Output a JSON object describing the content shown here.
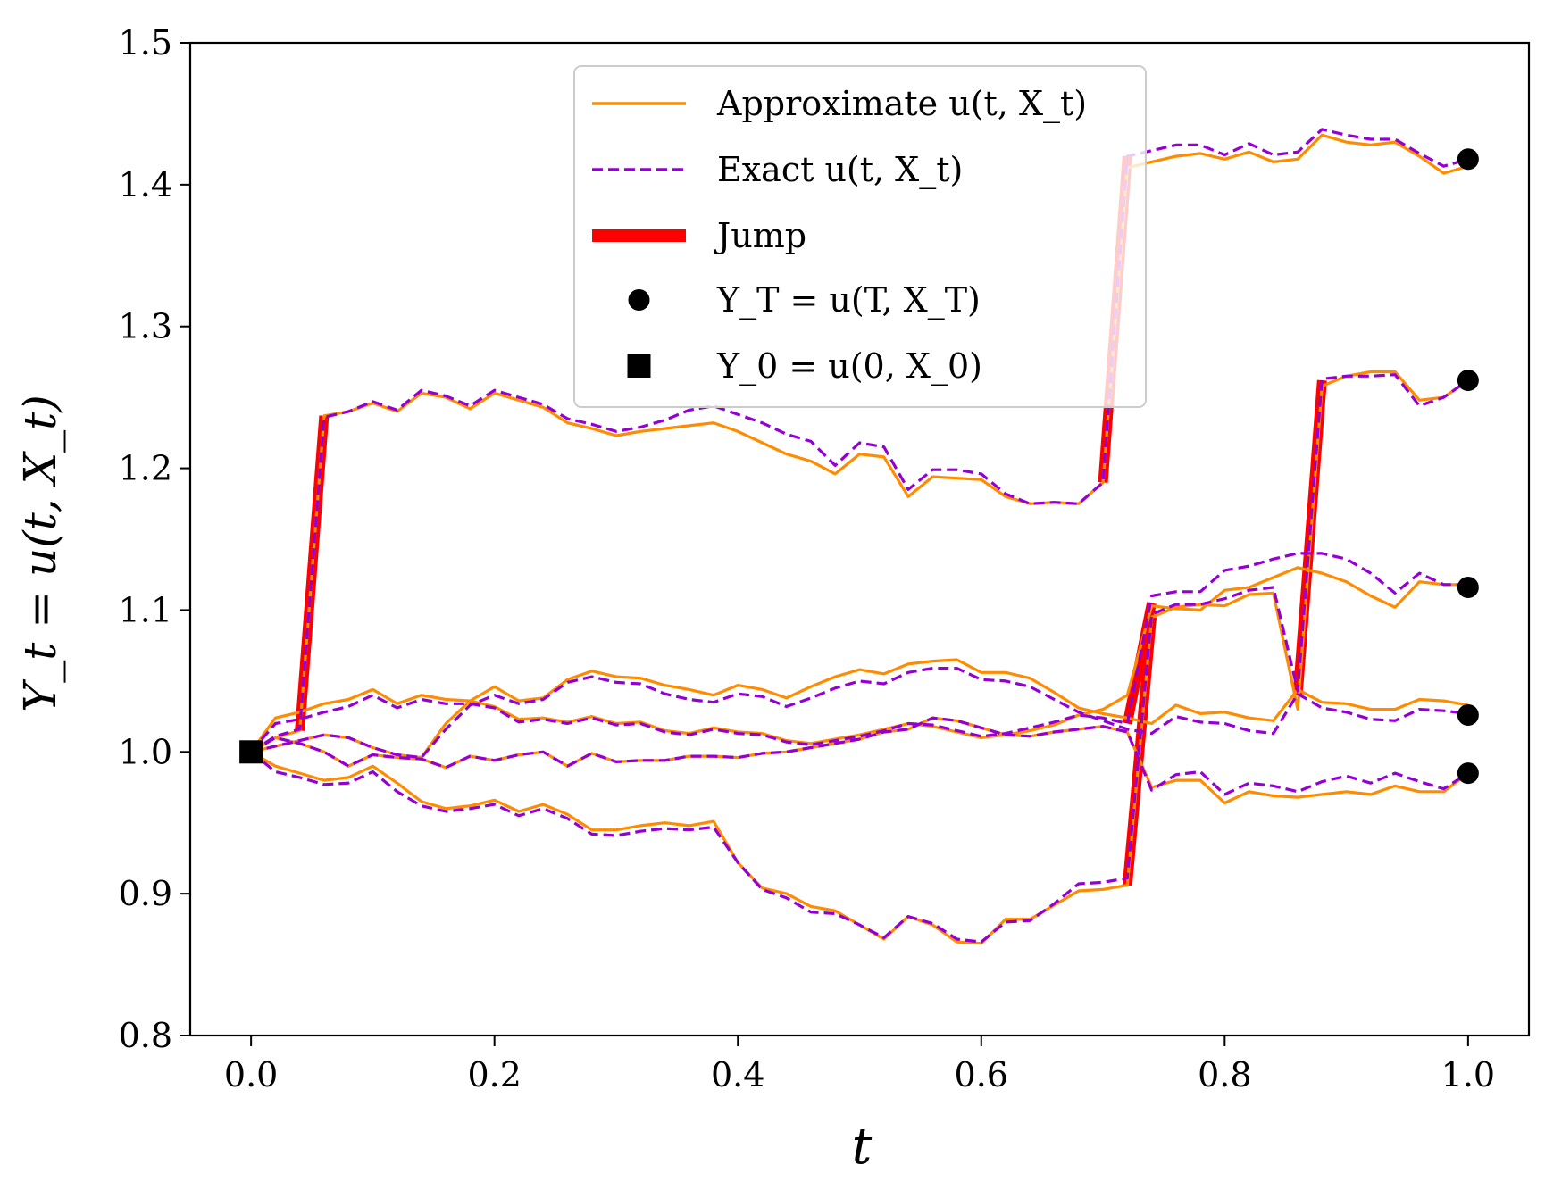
{
  "chart_data": {
    "type": "line",
    "xlabel": "t",
    "ylabel": "Y_t = u(t, X_t)",
    "xlim": [
      -0.05,
      1.05
    ],
    "ylim": [
      0.8,
      1.5
    ],
    "xticks": [
      0.0,
      0.2,
      0.4,
      0.6,
      0.8,
      1.0
    ],
    "xtick_labels": [
      "0.0",
      "0.2",
      "0.4",
      "0.6",
      "0.8",
      "1.0"
    ],
    "yticks": [
      0.8,
      0.9,
      1.0,
      1.1,
      1.2,
      1.3,
      1.4,
      1.5
    ],
    "ytick_labels": [
      "0.8",
      "0.9",
      "1.0",
      "1.1",
      "1.2",
      "1.3",
      "1.4",
      "1.5"
    ],
    "legend": {
      "placement": "top-center",
      "entries": [
        {
          "key": "approx",
          "label": "Approximate u(t, X_t)"
        },
        {
          "key": "exact",
          "label": "Exact u(t, X_t)"
        },
        {
          "key": "jump",
          "label": "Jump"
        },
        {
          "key": "terminal",
          "label": "Y_T = u(T, X_T)"
        },
        {
          "key": "initial",
          "label": "Y_0 = u(0, X_0)"
        }
      ]
    },
    "colors": {
      "approx": "#ff8c00",
      "exact": "#9400d3",
      "jump": "#ff0000",
      "marker": "#000000"
    },
    "initial_point": {
      "t": 0.0,
      "y": 1.0
    },
    "series": [
      {
        "name": "path-1",
        "x": [
          0.0,
          0.02,
          0.04,
          0.06,
          0.08,
          0.1,
          0.12,
          0.14,
          0.16,
          0.18,
          0.2,
          0.22,
          0.24,
          0.26,
          0.28,
          0.3,
          0.32,
          0.34,
          0.36,
          0.38,
          0.4,
          0.42,
          0.44,
          0.46,
          0.48,
          0.5,
          0.52,
          0.54,
          0.56,
          0.58,
          0.6,
          0.62,
          0.64,
          0.66,
          0.68,
          0.7,
          0.72,
          0.74,
          0.76,
          0.78,
          0.8,
          0.82,
          0.84,
          0.86,
          0.88,
          0.9,
          0.92,
          0.94,
          0.96,
          0.98,
          1.0
        ],
        "approx": [
          1.0,
          1.01,
          1.015,
          1.237,
          1.24,
          1.246,
          1.24,
          1.253,
          1.25,
          1.242,
          1.253,
          1.248,
          1.243,
          1.232,
          1.228,
          1.223,
          1.226,
          1.228,
          1.23,
          1.232,
          1.226,
          1.218,
          1.21,
          1.205,
          1.196,
          1.21,
          1.208,
          1.18,
          1.194,
          1.193,
          1.192,
          1.18,
          1.175,
          1.176,
          1.175,
          1.19,
          1.412,
          1.416,
          1.42,
          1.422,
          1.418,
          1.423,
          1.416,
          1.418,
          1.435,
          1.43,
          1.428,
          1.43,
          1.42,
          1.408,
          1.413
        ],
        "exact": [
          1.0,
          1.011,
          1.016,
          1.236,
          1.24,
          1.247,
          1.241,
          1.255,
          1.251,
          1.244,
          1.255,
          1.25,
          1.245,
          1.235,
          1.231,
          1.226,
          1.229,
          1.234,
          1.241,
          1.244,
          1.238,
          1.232,
          1.224,
          1.219,
          1.202,
          1.218,
          1.215,
          1.185,
          1.199,
          1.199,
          1.196,
          1.182,
          1.175,
          1.176,
          1.175,
          1.19,
          1.42,
          1.424,
          1.428,
          1.428,
          1.421,
          1.429,
          1.421,
          1.423,
          1.439,
          1.435,
          1.432,
          1.432,
          1.422,
          1.413,
          1.418
        ],
        "jumps": [
          [
            0.04,
            1.015,
            0.06,
            1.237
          ],
          [
            0.7,
            1.19,
            0.72,
            1.42
          ]
        ],
        "terminal": 1.418
      },
      {
        "name": "path-2",
        "x": [
          0.0,
          0.02,
          0.04,
          0.06,
          0.08,
          0.1,
          0.12,
          0.14,
          0.16,
          0.18,
          0.2,
          0.22,
          0.24,
          0.26,
          0.28,
          0.3,
          0.32,
          0.34,
          0.36,
          0.38,
          0.4,
          0.42,
          0.44,
          0.46,
          0.48,
          0.5,
          0.52,
          0.54,
          0.56,
          0.58,
          0.6,
          0.62,
          0.64,
          0.66,
          0.68,
          0.7,
          0.72,
          0.74,
          0.76,
          0.78,
          0.8,
          0.82,
          0.84,
          0.86,
          0.88,
          0.9,
          0.92,
          0.94,
          0.96,
          0.98,
          1.0
        ],
        "approx": [
          1.0,
          1.024,
          1.028,
          1.034,
          1.037,
          1.044,
          1.034,
          1.04,
          1.037,
          1.036,
          1.032,
          1.023,
          1.024,
          1.021,
          1.025,
          1.02,
          1.021,
          1.015,
          1.013,
          1.017,
          1.014,
          1.013,
          1.008,
          1.006,
          1.009,
          1.012,
          1.016,
          1.02,
          1.018,
          1.014,
          1.01,
          1.012,
          1.015,
          1.019,
          1.026,
          1.03,
          1.04,
          1.103,
          1.101,
          1.1,
          1.114,
          1.116,
          1.123,
          1.13,
          1.126,
          1.12,
          1.11,
          1.102,
          1.12,
          1.118,
          1.118
        ],
        "exact": [
          1.0,
          1.02,
          1.023,
          1.028,
          1.032,
          1.04,
          1.031,
          1.037,
          1.034,
          1.034,
          1.031,
          1.021,
          1.023,
          1.02,
          1.024,
          1.019,
          1.02,
          1.014,
          1.012,
          1.016,
          1.013,
          1.012,
          1.007,
          1.005,
          1.008,
          1.011,
          1.015,
          1.02,
          1.019,
          1.015,
          1.011,
          1.013,
          1.017,
          1.021,
          1.026,
          1.024,
          1.02,
          1.11,
          1.113,
          1.113,
          1.128,
          1.131,
          1.136,
          1.14,
          1.14,
          1.136,
          1.126,
          1.112,
          1.126,
          1.118,
          1.118
        ],
        "jumps": [
          [
            0.72,
            1.02,
            0.74,
            1.105
          ]
        ],
        "terminal": 1.116
      },
      {
        "name": "path-3",
        "x": [
          0.0,
          0.02,
          0.04,
          0.06,
          0.08,
          0.1,
          0.12,
          0.14,
          0.16,
          0.18,
          0.2,
          0.22,
          0.24,
          0.26,
          0.28,
          0.3,
          0.32,
          0.34,
          0.36,
          0.38,
          0.4,
          0.42,
          0.44,
          0.46,
          0.48,
          0.5,
          0.52,
          0.54,
          0.56,
          0.58,
          0.6,
          0.62,
          0.64,
          0.66,
          0.68,
          0.7,
          0.72,
          0.74,
          0.76,
          0.78,
          0.8,
          0.82,
          0.84,
          0.86,
          0.88,
          0.9,
          0.92,
          0.94,
          0.96,
          0.98,
          1.0
        ],
        "approx": [
          1.0,
          1.01,
          1.006,
          1.0,
          0.99,
          0.998,
          0.996,
          0.995,
          0.989,
          0.997,
          0.994,
          0.998,
          1.0,
          0.99,
          0.999,
          0.993,
          0.994,
          0.994,
          0.997,
          0.997,
          0.996,
          0.999,
          1.0,
          1.003,
          1.006,
          1.009,
          1.014,
          1.016,
          1.024,
          1.022,
          1.017,
          1.012,
          1.011,
          1.014,
          1.016,
          1.018,
          1.014,
          0.975,
          0.98,
          0.98,
          0.964,
          0.972,
          0.969,
          0.968,
          0.97,
          0.972,
          0.97,
          0.976,
          0.972,
          0.972,
          0.985
        ],
        "exact": [
          1.0,
          1.01,
          1.006,
          1.0,
          0.99,
          0.998,
          0.996,
          0.995,
          0.989,
          0.997,
          0.994,
          0.998,
          1.0,
          0.99,
          0.999,
          0.993,
          0.994,
          0.994,
          0.997,
          0.997,
          0.996,
          0.999,
          1.0,
          1.003,
          1.006,
          1.009,
          1.014,
          1.016,
          1.024,
          1.022,
          1.017,
          1.012,
          1.011,
          1.014,
          1.016,
          1.018,
          1.014,
          0.973,
          0.984,
          0.986,
          0.97,
          0.978,
          0.976,
          0.972,
          0.979,
          0.983,
          0.978,
          0.985,
          0.979,
          0.974,
          0.985
        ],
        "jumps": [],
        "terminal": 0.985
      },
      {
        "name": "path-4",
        "x": [
          0.0,
          0.02,
          0.04,
          0.06,
          0.08,
          0.1,
          0.12,
          0.14,
          0.16,
          0.18,
          0.2,
          0.22,
          0.24,
          0.26,
          0.28,
          0.3,
          0.32,
          0.34,
          0.36,
          0.38,
          0.4,
          0.42,
          0.44,
          0.46,
          0.48,
          0.5,
          0.52,
          0.54,
          0.56,
          0.58,
          0.6,
          0.62,
          0.64,
          0.66,
          0.68,
          0.7,
          0.72,
          0.74,
          0.76,
          0.78,
          0.8,
          0.82,
          0.84,
          0.86,
          0.88,
          0.9,
          0.92,
          0.94,
          0.96,
          0.98,
          1.0
        ],
        "approx": [
          1.0,
          1.004,
          1.008,
          1.012,
          1.01,
          1.003,
          0.998,
          0.996,
          1.02,
          1.036,
          1.046,
          1.036,
          1.038,
          1.051,
          1.057,
          1.053,
          1.052,
          1.047,
          1.044,
          1.04,
          1.047,
          1.044,
          1.038,
          1.046,
          1.053,
          1.058,
          1.055,
          1.062,
          1.064,
          1.065,
          1.056,
          1.056,
          1.052,
          1.042,
          1.031,
          1.027,
          1.024,
          1.02,
          1.033,
          1.027,
          1.028,
          1.024,
          1.022,
          1.044,
          1.035,
          1.034,
          1.03,
          1.03,
          1.037,
          1.036,
          1.033
        ],
        "exact": [
          1.0,
          1.004,
          1.008,
          1.012,
          1.01,
          1.003,
          0.998,
          0.996,
          1.016,
          1.033,
          1.04,
          1.034,
          1.037,
          1.049,
          1.053,
          1.049,
          1.048,
          1.041,
          1.037,
          1.035,
          1.041,
          1.039,
          1.032,
          1.038,
          1.045,
          1.05,
          1.048,
          1.056,
          1.059,
          1.059,
          1.051,
          1.05,
          1.046,
          1.037,
          1.028,
          1.022,
          1.016,
          1.013,
          1.025,
          1.021,
          1.02,
          1.015,
          1.013,
          1.041,
          1.031,
          1.028,
          1.023,
          1.022,
          1.03,
          1.029,
          1.027
        ],
        "jumps": [],
        "terminal": 1.026
      },
      {
        "name": "path-5",
        "x": [
          0.0,
          0.02,
          0.04,
          0.06,
          0.08,
          0.1,
          0.12,
          0.14,
          0.16,
          0.18,
          0.2,
          0.22,
          0.24,
          0.26,
          0.28,
          0.3,
          0.32,
          0.34,
          0.36,
          0.38,
          0.4,
          0.42,
          0.44,
          0.46,
          0.48,
          0.5,
          0.52,
          0.54,
          0.56,
          0.58,
          0.6,
          0.62,
          0.64,
          0.66,
          0.68,
          0.7,
          0.72,
          0.74,
          0.76,
          0.78,
          0.8,
          0.82,
          0.84,
          0.86,
          0.88,
          0.9,
          0.92,
          0.94,
          0.96,
          0.98,
          1.0
        ],
        "approx": [
          1.0,
          0.99,
          0.985,
          0.98,
          0.982,
          0.99,
          0.978,
          0.965,
          0.96,
          0.962,
          0.966,
          0.958,
          0.963,
          0.956,
          0.945,
          0.945,
          0.948,
          0.95,
          0.948,
          0.951,
          0.922,
          0.904,
          0.9,
          0.891,
          0.888,
          0.878,
          0.868,
          0.884,
          0.878,
          0.866,
          0.865,
          0.882,
          0.882,
          0.892,
          0.902,
          0.903,
          0.906,
          1.095,
          1.102,
          1.104,
          1.103,
          1.111,
          1.112,
          1.03,
          1.258,
          1.265,
          1.268,
          1.268,
          1.248,
          1.25,
          1.262
        ],
        "exact": [
          1.0,
          0.986,
          0.982,
          0.977,
          0.978,
          0.986,
          0.972,
          0.962,
          0.958,
          0.96,
          0.963,
          0.955,
          0.96,
          0.953,
          0.942,
          0.941,
          0.944,
          0.946,
          0.945,
          0.947,
          0.922,
          0.903,
          0.897,
          0.887,
          0.886,
          0.878,
          0.869,
          0.884,
          0.879,
          0.868,
          0.866,
          0.88,
          0.881,
          0.893,
          0.907,
          0.908,
          0.911,
          1.097,
          1.104,
          1.104,
          1.108,
          1.114,
          1.116,
          1.043,
          1.263,
          1.265,
          1.265,
          1.266,
          1.244,
          1.25,
          1.262
        ],
        "jumps": [
          [
            0.72,
            0.906,
            0.74,
            1.095
          ],
          [
            0.86,
            1.04,
            0.88,
            1.262
          ]
        ],
        "terminal": 1.262
      }
    ]
  }
}
